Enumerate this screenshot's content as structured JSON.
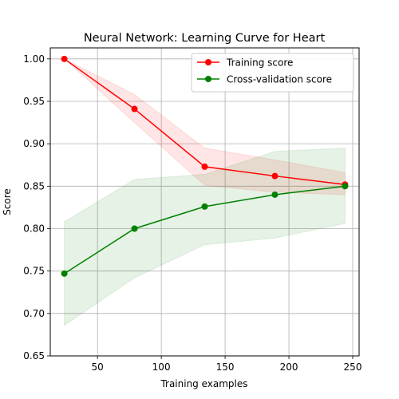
{
  "chart_data": {
    "type": "line",
    "title": "Neural Network: Learning Curve for Heart",
    "xlabel": "Training examples",
    "ylabel": "Score",
    "xlim": [
      13,
      255
    ],
    "ylim": [
      0.65,
      1.013
    ],
    "xticks": [
      50,
      100,
      150,
      200,
      250
    ],
    "yticks": [
      0.65,
      0.7,
      0.75,
      0.8,
      0.85,
      0.9,
      0.95,
      1.0
    ],
    "ytick_format": 2,
    "grid": true,
    "legend_position": "top-right",
    "x": [
      24,
      79,
      134,
      189,
      244
    ],
    "series": [
      {
        "name": "Training score",
        "color": "#ff0000",
        "values": [
          1.0,
          0.941,
          0.873,
          0.862,
          0.852
        ],
        "band_lower": [
          1.0,
          0.925,
          0.851,
          0.843,
          0.84
        ],
        "band_upper": [
          1.0,
          0.958,
          0.895,
          0.881,
          0.866
        ]
      },
      {
        "name": "Cross-validation score",
        "color": "#008000",
        "values": [
          0.747,
          0.8,
          0.826,
          0.84,
          0.85
        ],
        "band_lower": [
          0.686,
          0.742,
          0.781,
          0.789,
          0.806
        ],
        "band_upper": [
          0.808,
          0.858,
          0.864,
          0.891,
          0.895
        ]
      }
    ]
  }
}
